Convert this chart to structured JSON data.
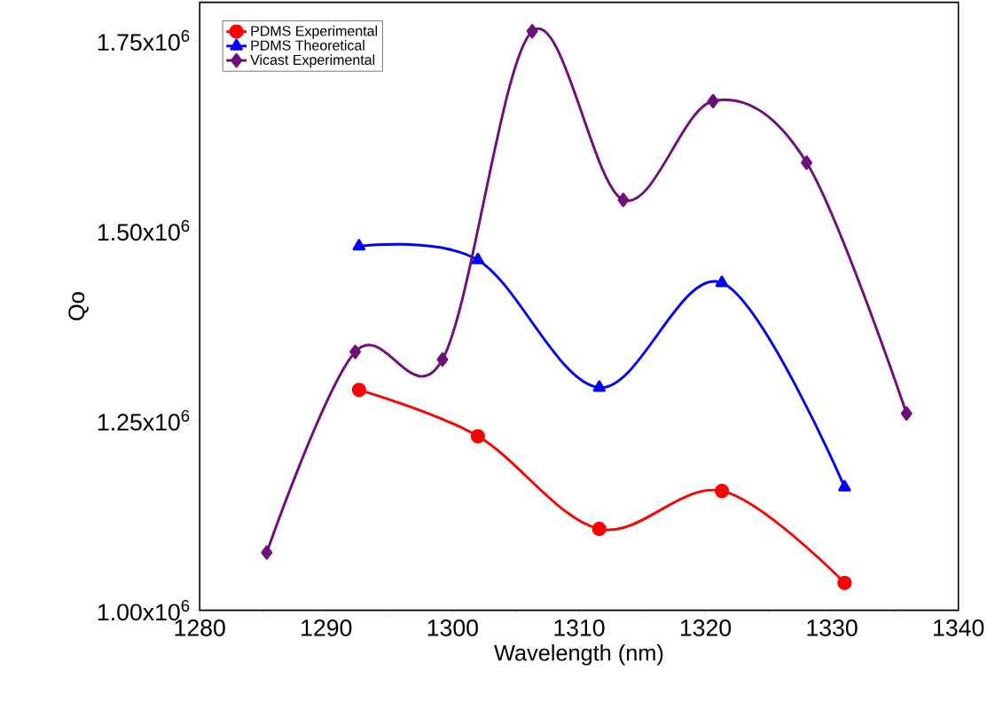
{
  "chart_data": {
    "type": "line",
    "xlabel": "Wavelength (nm)",
    "ylabel": "Qo",
    "xlim": [
      1280,
      1340
    ],
    "xticks": [
      1280,
      1290,
      1300,
      1310,
      1320,
      1330,
      1340
    ],
    "ylim": [
      1000000,
      1800000
    ],
    "yticks": [
      {
        "value": 1000000,
        "label": "1.00x10$^{6}$"
      },
      {
        "value": 1250000,
        "label": "1.25x10$^{6}$"
      },
      {
        "value": 1500000,
        "label": "1.50x10$^{6}$"
      },
      {
        "value": 1750000,
        "label": "1.75x10$^{6}$"
      }
    ],
    "grid": false,
    "legend": "top left",
    "series": [
      {
        "name": "PDMS Experimental",
        "color": "#ff0000",
        "marker": "circle",
        "x": [
          1292.6,
          1302.0,
          1311.6,
          1321.3,
          1331.0
        ],
        "values": [
          1290000,
          1229000,
          1107000,
          1157000,
          1036000
        ]
      },
      {
        "name": "PDMS Theoretical",
        "color": "#0000ff",
        "marker": "triangle",
        "x": [
          1292.6,
          1302.0,
          1311.6,
          1321.3,
          1331.0
        ],
        "values": [
          1479000,
          1461000,
          1293000,
          1431000,
          1162000
        ]
      },
      {
        "name": "Vicast Experimental",
        "color": "#6e0f7a",
        "marker": "diamond",
        "x": [
          1285.3,
          1292.3,
          1299.2,
          1306.3,
          1313.5,
          1320.6,
          1328.0,
          1335.9
        ],
        "values": [
          1076000,
          1340000,
          1330000,
          1762000,
          1540000,
          1670000,
          1589000,
          1259000
        ]
      }
    ]
  }
}
